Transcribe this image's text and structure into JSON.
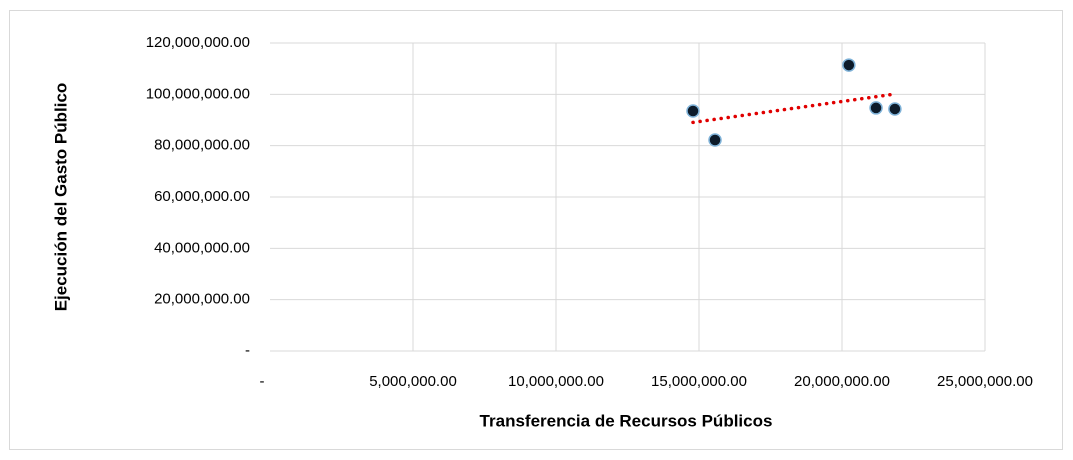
{
  "chart_data": {
    "type": "scatter",
    "x_label": "Transferencia de Recursos Públicos",
    "y_label": "Ejecución del Gasto Público",
    "series": [
      {
        "color": "#0d1b2a",
        "x": [
          14790000,
          15560000,
          20240000,
          21190000,
          21850000
        ],
        "values": [
          93500000,
          82200000,
          111400000,
          94700000,
          94300000
        ]
      }
    ],
    "trendline": true,
    "trendline_color": "#e00000",
    "xlim": [
      0,
      25000000
    ],
    "xticks": [
      {
        "value": 0,
        "label": "-"
      },
      {
        "value": 5000000,
        "label": "5,000,000.00"
      },
      {
        "value": 10000000,
        "label": "10,000,000.00"
      },
      {
        "value": 15000000,
        "label": "15,000,000.00"
      },
      {
        "value": 20000000,
        "label": "20,000,000.00"
      },
      {
        "value": 25000000,
        "label": "25,000,000.00"
      }
    ],
    "ylim": [
      0,
      120000000
    ],
    "yticks": [
      {
        "value": 0,
        "label": "-"
      },
      {
        "value": 20000000,
        "label": "20,000,000.00"
      },
      {
        "value": 40000000,
        "label": "40,000,000.00"
      },
      {
        "value": 60000000,
        "label": "60,000,000.00"
      },
      {
        "value": 80000000,
        "label": "80,000,000.00"
      },
      {
        "value": 100000000,
        "label": "100,000,000.00"
      },
      {
        "value": 120000000,
        "label": "120,000,000.00"
      }
    ],
    "grid": true
  }
}
